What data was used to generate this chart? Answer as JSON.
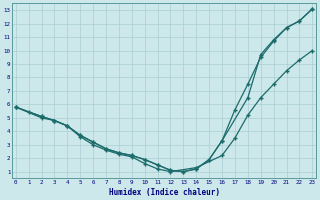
{
  "xlabel": "Humidex (Indice chaleur)",
  "bg_color": "#cce8eb",
  "grid_color": "#aacdd2",
  "line_color": "#1c6b6b",
  "xlim": [
    -0.3,
    23.3
  ],
  "ylim": [
    0.5,
    13.5
  ],
  "xticks": [
    0,
    1,
    2,
    3,
    4,
    5,
    6,
    7,
    8,
    9,
    10,
    11,
    12,
    13,
    14,
    15,
    16,
    17,
    18,
    19,
    20,
    21,
    22,
    23
  ],
  "yticks": [
    1,
    2,
    3,
    4,
    5,
    6,
    7,
    8,
    9,
    10,
    11,
    12,
    13
  ],
  "line1_x": [
    0,
    1,
    2,
    3,
    4,
    5,
    6,
    7,
    8,
    9,
    10,
    11,
    12,
    14,
    16,
    17,
    18,
    19,
    20,
    21,
    22,
    23
  ],
  "line1_y": [
    5.8,
    5.4,
    5.0,
    4.8,
    4.4,
    3.6,
    3.0,
    2.6,
    2.3,
    2.1,
    1.6,
    1.2,
    1.0,
    1.3,
    2.2,
    3.5,
    5.2,
    6.5,
    7.5,
    8.5,
    9.3,
    10.0
  ],
  "line2_x": [
    0,
    2,
    3,
    4,
    5,
    6,
    7,
    8,
    9,
    10,
    11,
    12,
    13,
    14,
    15,
    16,
    18,
    19,
    20,
    21,
    22,
    23
  ],
  "line2_y": [
    5.8,
    5.1,
    4.8,
    4.4,
    3.7,
    3.2,
    2.7,
    2.4,
    2.2,
    1.9,
    1.5,
    1.1,
    1.0,
    1.2,
    1.9,
    3.3,
    6.5,
    9.7,
    10.8,
    11.7,
    12.2,
    13.1
  ],
  "line3_x": [
    0,
    2,
    3,
    4,
    5,
    6,
    7,
    8,
    9,
    10,
    11,
    12,
    13,
    14,
    15,
    16,
    17,
    18,
    19,
    20,
    21,
    22,
    23
  ],
  "line3_y": [
    5.8,
    5.1,
    4.8,
    4.4,
    3.7,
    3.2,
    2.7,
    2.4,
    2.2,
    1.9,
    1.5,
    1.1,
    1.0,
    1.2,
    1.9,
    3.3,
    5.6,
    7.5,
    9.5,
    10.7,
    11.7,
    12.2,
    13.1
  ]
}
